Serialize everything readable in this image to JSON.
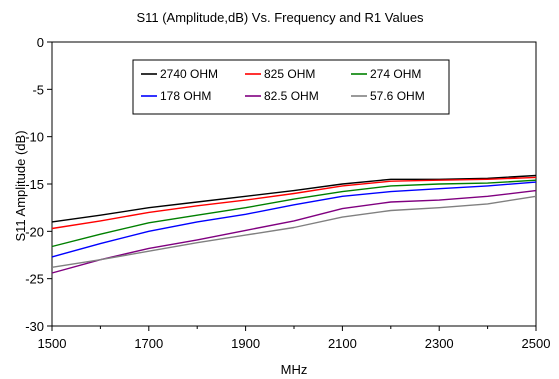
{
  "chart_data": {
    "type": "line",
    "title": "S11 (Amplitude,dB) Vs. Frequency and R1 Values",
    "xlabel": "MHz",
    "ylabel": "S11 Amplitude (dB)",
    "xlim": [
      1500,
      2500
    ],
    "ylim": [
      -30,
      0
    ],
    "x_ticks": [
      "1500",
      "1700",
      "1900",
      "2100",
      "2300",
      "2500"
    ],
    "y_ticks": [
      "0",
      "-5",
      "-10",
      "-15",
      "-20",
      "-25",
      "-30"
    ],
    "grid": false,
    "legend_position": "top-center",
    "x": [
      1500,
      1600,
      1700,
      1800,
      1900,
      2000,
      2100,
      2200,
      2300,
      2400,
      2500
    ],
    "series": [
      {
        "name": "2740 OHM",
        "color": "#000000",
        "values": [
          -19.0,
          -18.3,
          -17.5,
          -16.9,
          -16.3,
          -15.7,
          -15.0,
          -14.5,
          -14.5,
          -14.4,
          -14.1
        ]
      },
      {
        "name": "825 OHM",
        "color": "#ff0000",
        "values": [
          -19.7,
          -18.9,
          -18.0,
          -17.3,
          -16.7,
          -16.0,
          -15.2,
          -14.7,
          -14.6,
          -14.5,
          -14.3
        ]
      },
      {
        "name": "274 OHM",
        "color": "#008000",
        "values": [
          -21.6,
          -20.3,
          -19.1,
          -18.3,
          -17.5,
          -16.6,
          -15.8,
          -15.2,
          -15.0,
          -14.9,
          -14.6
        ]
      },
      {
        "name": "178 OHM",
        "color": "#0000ff",
        "values": [
          -22.7,
          -21.3,
          -20.0,
          -19.0,
          -18.2,
          -17.2,
          -16.3,
          -15.8,
          -15.5,
          -15.2,
          -14.8
        ]
      },
      {
        "name": "82.5 OHM",
        "color": "#800080",
        "values": [
          -24.4,
          -23.0,
          -21.8,
          -20.9,
          -19.9,
          -18.9,
          -17.6,
          -16.9,
          -16.7,
          -16.3,
          -15.7
        ]
      },
      {
        "name": "57.6 OHM",
        "color": "#808080",
        "values": [
          -23.8,
          -23.0,
          -22.1,
          -21.2,
          -20.4,
          -19.6,
          -18.5,
          -17.8,
          -17.5,
          -17.1,
          -16.3
        ]
      }
    ]
  }
}
